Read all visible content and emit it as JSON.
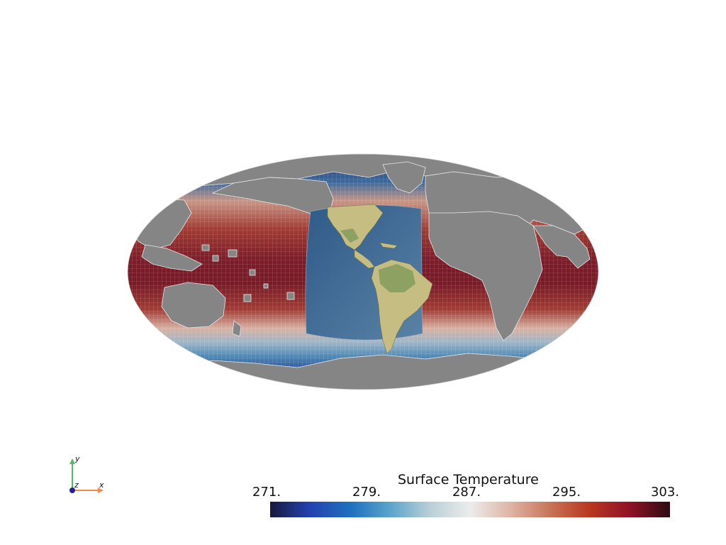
{
  "colorbar": {
    "title": "Surface Temperature",
    "ticks": [
      "271.",
      "279.",
      "287.",
      "295.",
      "303."
    ],
    "range": [
      271,
      303
    ],
    "stops": [
      "#181a3c",
      "#2342b0",
      "#1f6fbf",
      "#5aa4cc",
      "#b9cfd6",
      "#ececec",
      "#dfb5a6",
      "#c77458",
      "#b9361f",
      "#8f1226",
      "#2c0b12"
    ]
  },
  "axes": {
    "x": "x",
    "y": "y",
    "z": "z"
  },
  "colors": {
    "land": "#858585",
    "ocean_warm": "#8a2630",
    "ocean_cold": "#30477e",
    "overlay_ocean": "#3d6490",
    "overlay_land": "#c7bf82",
    "background": "#ffffff"
  }
}
